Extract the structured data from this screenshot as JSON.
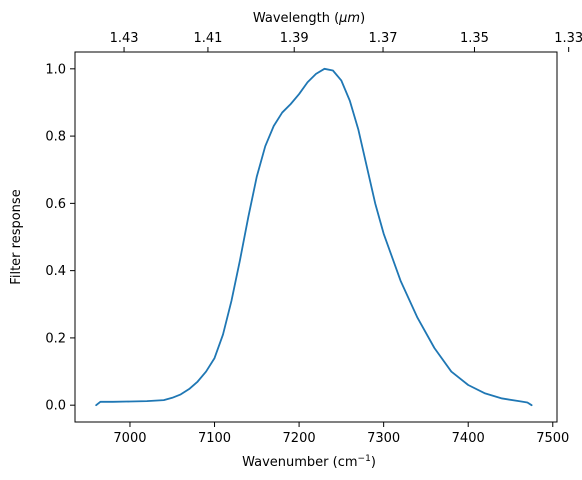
{
  "chart_data": {
    "type": "line",
    "xlabel": "Wavenumber (cm",
    "xlabel_sup": "−1",
    "xlabel_end": ")",
    "top_xlabel": "Wavelength (",
    "top_xlabel_unit": "μm",
    "top_xlabel_end": ")",
    "ylabel": "Filter response",
    "xlim": [
      6935,
      7505
    ],
    "ylim": [
      -0.05,
      1.05
    ],
    "x_ticks": [
      7000,
      7100,
      7200,
      7300,
      7400,
      7500
    ],
    "y_ticks": [
      0.0,
      0.2,
      0.4,
      0.6,
      0.8,
      1.0
    ],
    "y_tick_labels": [
      "0.0",
      "0.2",
      "0.4",
      "0.6",
      "0.8",
      "1.0"
    ],
    "top_ticks": [
      1.43,
      1.41,
      1.39,
      1.37,
      1.35,
      1.33
    ],
    "top_tick_labels": [
      "1.43",
      "1.41",
      "1.39",
      "1.37",
      "1.35",
      "1.33"
    ],
    "line_color": "#1f77b4",
    "series": [
      {
        "x": [
          6960,
          6965,
          6980,
          7000,
          7020,
          7040,
          7050,
          7060,
          7070,
          7080,
          7090,
          7100,
          7110,
          7120,
          7130,
          7140,
          7150,
          7160,
          7170,
          7180,
          7190,
          7200,
          7210,
          7220,
          7230,
          7240,
          7250,
          7260,
          7270,
          7280,
          7290,
          7300,
          7320,
          7340,
          7360,
          7380,
          7400,
          7420,
          7440,
          7460,
          7470,
          7475
        ],
        "y": [
          0.0,
          0.01,
          0.01,
          0.011,
          0.012,
          0.015,
          0.022,
          0.032,
          0.048,
          0.07,
          0.1,
          0.14,
          0.21,
          0.31,
          0.43,
          0.56,
          0.68,
          0.77,
          0.83,
          0.87,
          0.895,
          0.925,
          0.96,
          0.985,
          1.0,
          0.995,
          0.965,
          0.905,
          0.82,
          0.71,
          0.6,
          0.51,
          0.37,
          0.26,
          0.17,
          0.1,
          0.06,
          0.035,
          0.02,
          0.012,
          0.008,
          0.0
        ]
      }
    ]
  }
}
